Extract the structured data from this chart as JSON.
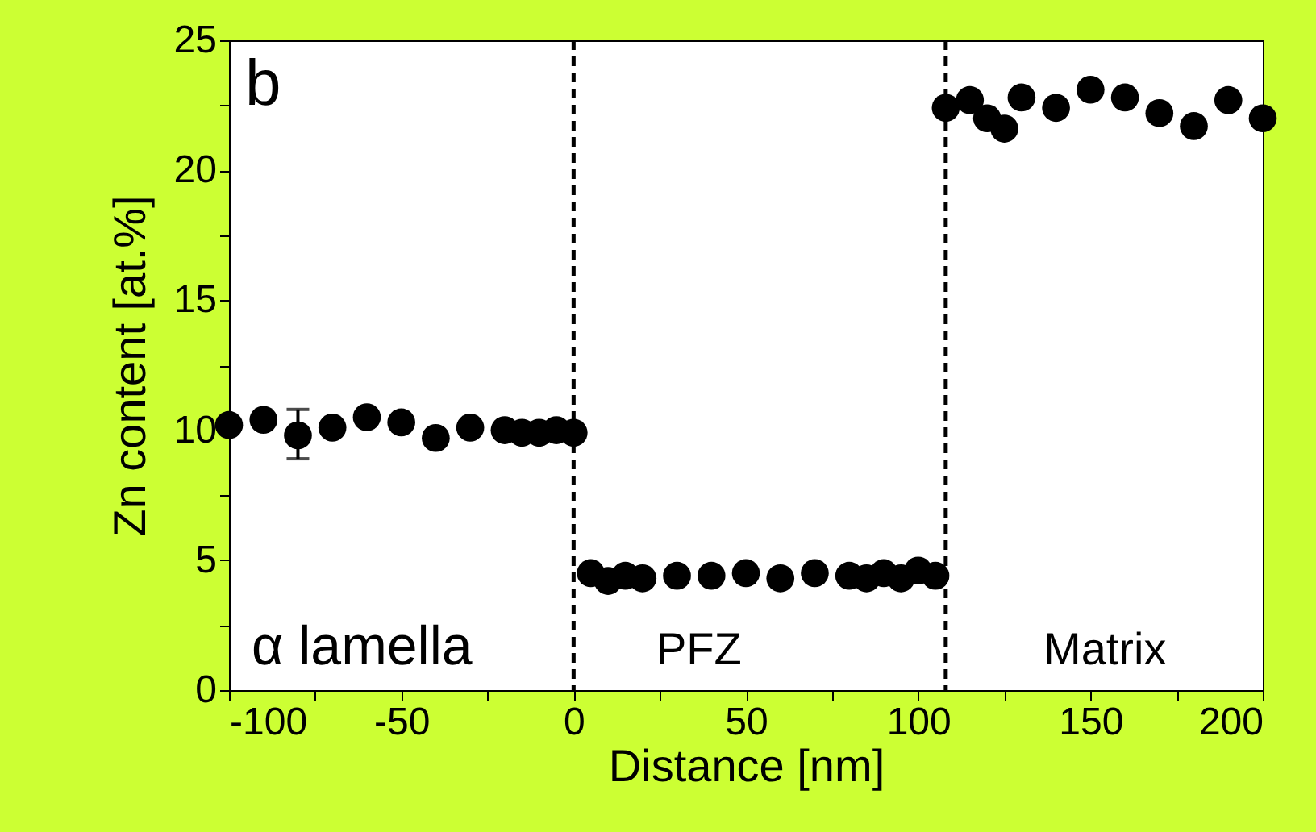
{
  "chart_data": {
    "type": "scatter",
    "xlabel": "Distance [nm]",
    "ylabel": "Zn content [at.%]",
    "x": [
      -100,
      -90,
      -80,
      -70,
      -60,
      -50,
      -40,
      -30,
      -20,
      -15,
      -10,
      -5,
      0,
      5,
      10,
      15,
      20,
      30,
      40,
      50,
      60,
      70,
      80,
      85,
      90,
      95,
      100,
      105,
      108,
      115,
      120,
      125,
      130,
      140,
      150,
      160,
      170,
      180,
      190,
      200
    ],
    "series": [
      {
        "color": "#000000",
        "values": [
          10.2,
          10.4,
          9.8,
          10.1,
          10.5,
          10.3,
          9.7,
          10.1,
          10.0,
          9.9,
          9.9,
          10.0,
          9.9,
          4.5,
          4.2,
          4.4,
          4.3,
          4.4,
          4.4,
          4.5,
          4.3,
          4.5,
          4.4,
          4.3,
          4.5,
          4.3,
          4.6,
          4.4,
          22.4,
          22.7,
          22.0,
          21.6,
          22.8,
          22.4,
          23.1,
          22.8,
          22.2,
          21.7,
          22.7,
          22.0
        ],
        "errors": [
          null,
          null,
          [
            8.9,
            10.8
          ],
          null,
          null,
          null,
          null,
          null,
          null,
          null,
          null,
          null,
          null,
          null,
          null,
          null,
          null,
          null,
          null,
          null,
          null,
          null,
          null,
          null,
          null,
          null,
          null,
          null,
          null,
          null,
          null,
          null,
          null,
          null,
          null,
          null,
          null,
          null,
          null,
          null
        ]
      }
    ],
    "xlim": [
      -100,
      200
    ],
    "xticks": [
      -100,
      {
        "value": -75,
        "label": null
      },
      -50,
      {
        "value": -25,
        "label": null
      },
      0,
      {
        "value": 25,
        "label": null
      },
      50,
      {
        "value": 75,
        "label": null
      },
      100,
      {
        "value": 125,
        "label": null
      },
      150,
      {
        "value": 175,
        "label": null
      },
      200
    ],
    "ylim": [
      0,
      25
    ],
    "yticks": [
      0,
      {
        "value": 2.5,
        "label": null
      },
      5,
      {
        "value": 7.5,
        "label": null
      },
      10,
      {
        "value": 12.5,
        "label": null
      },
      15,
      {
        "value": 17.5,
        "label": null
      },
      20,
      {
        "value": 22.5,
        "label": null
      },
      25
    ],
    "ref_lines": [
      {
        "axis": "x",
        "value": 0,
        "color": "#000000",
        "line_style": "dashed"
      },
      {
        "axis": "x",
        "value": 108,
        "color": "#000000",
        "line_style": "dashed"
      }
    ],
    "annotations": [
      "b",
      "α lamella",
      "PFZ",
      "Matrix"
    ],
    "marker": "circle",
    "grid": false
  }
}
